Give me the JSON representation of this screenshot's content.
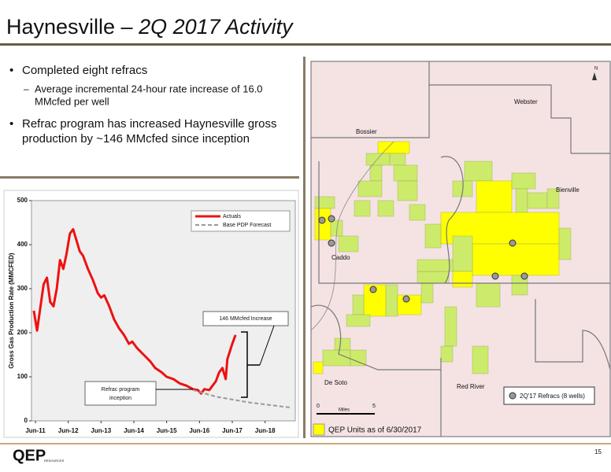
{
  "header": {
    "title_main": "Haynesville – ",
    "title_italic": "2Q 2017 Activity"
  },
  "bullets": [
    {
      "text": "Completed eight refracs",
      "sub": [
        "Average incremental 24-hour rate increase of 16.0",
        "MMcfed per well"
      ]
    },
    {
      "text": [
        "Refrac program has increased Haynesville gross",
        "production by ~146 MMcfed since inception"
      ]
    }
  ],
  "chart_data": {
    "type": "line",
    "ylabel": "Gross Gas Production Rate (MMCFED)",
    "xlim": [
      2011.38,
      2019.42
    ],
    "ylim": [
      0,
      500
    ],
    "yticks": [
      0,
      100,
      200,
      300,
      400,
      500
    ],
    "xticks": [
      {
        "value": 2011.5,
        "label": "Jun-11"
      },
      {
        "value": 2012.5,
        "label": "Jun-12"
      },
      {
        "value": 2013.5,
        "label": "Jun-13"
      },
      {
        "value": 2014.5,
        "label": "Jun-14"
      },
      {
        "value": 2015.5,
        "label": "Jun-15"
      },
      {
        "value": 2016.5,
        "label": "Jun-16"
      },
      {
        "value": 2017.5,
        "label": "Jun-17"
      },
      {
        "value": 2018.5,
        "label": "Jun-18"
      }
    ],
    "series": [
      {
        "name": "Actuals",
        "color": "#ee1111",
        "dash": false,
        "x": [
          2011.45,
          2011.55,
          2011.75,
          2011.85,
          2011.95,
          2012.05,
          2012.15,
          2012.25,
          2012.35,
          2012.45,
          2012.55,
          2012.65,
          2012.75,
          2012.85,
          2012.95,
          2013.1,
          2013.25,
          2013.4,
          2013.5,
          2013.6,
          2013.75,
          2013.9,
          2014.05,
          2014.2,
          2014.35,
          2014.45,
          2014.6,
          2014.8,
          2015.0,
          2015.15,
          2015.35,
          2015.5,
          2015.7,
          2015.9,
          2016.1,
          2016.3,
          2016.45,
          2016.55,
          2016.65,
          2016.8,
          2016.9,
          2017.0,
          2017.1,
          2017.2,
          2017.3,
          2017.35,
          2017.5,
          2017.6
        ],
        "values": [
          250,
          205,
          310,
          325,
          270,
          260,
          300,
          365,
          345,
          380,
          425,
          435,
          410,
          385,
          375,
          345,
          320,
          290,
          280,
          285,
          260,
          230,
          210,
          195,
          175,
          180,
          165,
          150,
          135,
          120,
          110,
          100,
          95,
          85,
          80,
          72,
          70,
          62,
          72,
          70,
          80,
          90,
          110,
          120,
          95,
          140,
          175,
          195
        ]
      },
      {
        "name": "Base PDP Forecast",
        "color": "#999999",
        "dash": true,
        "x": [
          2016.3,
          2017.0,
          2018.0,
          2019.3
        ],
        "values": [
          70,
          55,
          42,
          30
        ]
      }
    ],
    "annotations": [
      "146 MMcfed Increase",
      "Refrac program",
      "inception"
    ]
  },
  "map": {
    "parishes": [
      "Webster",
      "Bossier",
      "Bienville",
      "Caddo",
      "De Soto",
      "Red River"
    ],
    "legend_refracs": "2Q'17 Refracs (8 wells)",
    "legend_units": "QEP Units as of 6/30/2017",
    "scale": [
      "0",
      "5",
      "Miles"
    ],
    "north": "N"
  },
  "footer": {
    "logo": "QEP",
    "logo_sub": "RESOURCES",
    "page": "15"
  }
}
